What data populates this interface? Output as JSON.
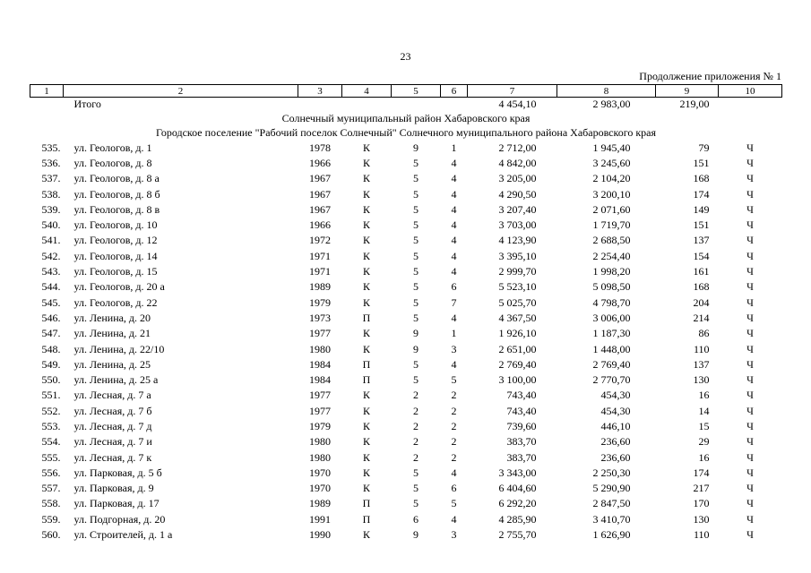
{
  "page": {
    "number": "23",
    "continuation": "Продолжение приложения № 1"
  },
  "table": {
    "column_numbers": [
      "1",
      "2",
      "3",
      "4",
      "5",
      "6",
      "7",
      "8",
      "9",
      "10"
    ],
    "totals_row": [
      "",
      "Итого",
      "",
      "",
      "",
      "",
      "4 454,10",
      "2 983,00",
      "219,00",
      ""
    ],
    "section_headers": [
      "Солнечный муниципальный район Хабаровского края",
      "Городское поселение \"Рабочий поселок Солнечный\" Солнечного муниципального района Хабаровского края"
    ],
    "rows": [
      [
        "535.",
        "ул. Геологов, д. 1",
        "1978",
        "К",
        "9",
        "1",
        "2 712,00",
        "1 945,40",
        "79",
        "Ч"
      ],
      [
        "536.",
        "ул. Геологов, д. 8",
        "1966",
        "К",
        "5",
        "4",
        "4 842,00",
        "3 245,60",
        "151",
        "Ч"
      ],
      [
        "537.",
        "ул. Геологов, д. 8 а",
        "1967",
        "К",
        "5",
        "4",
        "3 205,00",
        "2 104,20",
        "168",
        "Ч"
      ],
      [
        "538.",
        "ул. Геологов, д. 8 б",
        "1967",
        "К",
        "5",
        "4",
        "4 290,50",
        "3 200,10",
        "174",
        "Ч"
      ],
      [
        "539.",
        "ул. Геологов, д. 8 в",
        "1967",
        "К",
        "5",
        "4",
        "3 207,40",
        "2 071,60",
        "149",
        "Ч"
      ],
      [
        "540.",
        "ул. Геологов, д. 10",
        "1966",
        "К",
        "5",
        "4",
        "3 703,00",
        "1 719,70",
        "151",
        "Ч"
      ],
      [
        "541.",
        "ул. Геологов, д. 12",
        "1972",
        "К",
        "5",
        "4",
        "4 123,90",
        "2 688,50",
        "137",
        "Ч"
      ],
      [
        "542.",
        "ул. Геологов, д. 14",
        "1971",
        "К",
        "5",
        "4",
        "3 395,10",
        "2 254,40",
        "154",
        "Ч"
      ],
      [
        "543.",
        "ул. Геологов, д. 15",
        "1971",
        "К",
        "5",
        "4",
        "2 999,70",
        "1 998,20",
        "161",
        "Ч"
      ],
      [
        "544.",
        "ул. Геологов, д. 20 а",
        "1989",
        "К",
        "5",
        "6",
        "5 523,10",
        "5 098,50",
        "168",
        "Ч"
      ],
      [
        "545.",
        "ул. Геологов, д. 22",
        "1979",
        "К",
        "5",
        "7",
        "5 025,70",
        "4 798,70",
        "204",
        "Ч"
      ],
      [
        "546.",
        "ул. Ленина, д. 20",
        "1973",
        "П",
        "5",
        "4",
        "4 367,50",
        "3 006,00",
        "214",
        "Ч"
      ],
      [
        "547.",
        "ул. Ленина, д. 21",
        "1977",
        "К",
        "9",
        "1",
        "1 926,10",
        "1 187,30",
        "86",
        "Ч"
      ],
      [
        "548.",
        "ул. Ленина, д. 22/10",
        "1980",
        "К",
        "9",
        "3",
        "2 651,00",
        "1 448,00",
        "110",
        "Ч"
      ],
      [
        "549.",
        "ул. Ленина, д. 25",
        "1984",
        "П",
        "5",
        "4",
        "2 769,40",
        "2 769,40",
        "137",
        "Ч"
      ],
      [
        "550.",
        "ул. Ленина, д. 25 а",
        "1984",
        "П",
        "5",
        "5",
        "3 100,00",
        "2 770,70",
        "130",
        "Ч"
      ],
      [
        "551.",
        "ул. Лесная, д. 7 а",
        "1977",
        "К",
        "2",
        "2",
        "743,40",
        "454,30",
        "16",
        "Ч"
      ],
      [
        "552.",
        "ул. Лесная, д. 7 б",
        "1977",
        "К",
        "2",
        "2",
        "743,40",
        "454,30",
        "14",
        "Ч"
      ],
      [
        "553.",
        "ул. Лесная, д. 7 д",
        "1979",
        "К",
        "2",
        "2",
        "739,60",
        "446,10",
        "15",
        "Ч"
      ],
      [
        "554.",
        "ул. Лесная, д. 7 и",
        "1980",
        "К",
        "2",
        "2",
        "383,70",
        "236,60",
        "29",
        "Ч"
      ],
      [
        "555.",
        "ул. Лесная, д. 7 к",
        "1980",
        "К",
        "2",
        "2",
        "383,70",
        "236,60",
        "16",
        "Ч"
      ],
      [
        "556.",
        "ул. Парковая, д. 5 б",
        "1970",
        "К",
        "5",
        "4",
        "3 343,00",
        "2 250,30",
        "174",
        "Ч"
      ],
      [
        "557.",
        "ул. Парковая, д. 9",
        "1970",
        "К",
        "5",
        "6",
        "6 404,60",
        "5 290,90",
        "217",
        "Ч"
      ],
      [
        "558.",
        "ул. Парковая, д. 17",
        "1989",
        "П",
        "5",
        "5",
        "6 292,20",
        "2 847,50",
        "170",
        "Ч"
      ],
      [
        "559.",
        "ул. Подгорная, д. 20",
        "1991",
        "П",
        "6",
        "4",
        "4 285,90",
        "3 410,70",
        "130",
        "Ч"
      ],
      [
        "560.",
        "ул. Строителей, д. 1 а",
        "1990",
        "К",
        "9",
        "3",
        "2 755,70",
        "1 626,90",
        "110",
        "Ч"
      ]
    ]
  }
}
